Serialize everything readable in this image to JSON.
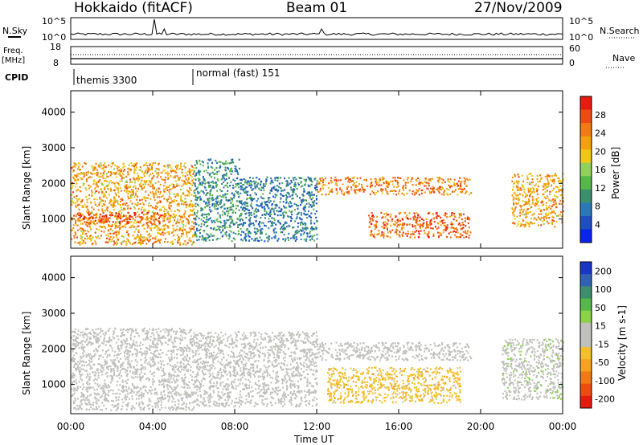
{
  "header": {
    "radar": "Hokkaido (fitACF)",
    "beam": "Beam 01",
    "date": "27/Nov/2009"
  },
  "strips": {
    "nsky_label": "N.Sky",
    "nsky_ticks": [
      "10^5",
      "10^0"
    ],
    "nsearch_label": "N.Search",
    "nsearch_ticks": [
      "10^5",
      "10^0"
    ],
    "freq_label": "Freq.",
    "freq_unit": "[MHz]",
    "freq_ticks": [
      "18",
      "8"
    ],
    "nave_label": "Nave",
    "nave_ticks": [
      "60",
      "0"
    ],
    "cpid_label": "CPID",
    "cpid_segments": [
      {
        "label": "themis 3300",
        "start_hour": 0,
        "end_hour": 6
      },
      {
        "label": "normal (fast) 151",
        "start_hour": 6,
        "end_hour": 24
      }
    ]
  },
  "axes": {
    "ylabel": "Slant Range [km]",
    "xlabel": "Time UT",
    "x_ticks": [
      "00:00",
      "04:00",
      "08:00",
      "12:00",
      "16:00",
      "20:00",
      "00:00"
    ],
    "y_ticks": [
      "1000",
      "2000",
      "3000",
      "4000"
    ]
  },
  "colorbars": {
    "power": {
      "label": "Power [dB]",
      "ticks": [
        "4",
        "8",
        "12",
        "16",
        "20",
        "24",
        "28"
      ],
      "colors": [
        "#0a24f0",
        "#1d4fc0",
        "#2a78b8",
        "#3c8f6c",
        "#56b848",
        "#8fd15a",
        "#f0c814",
        "#f4a00f",
        "#f27a12",
        "#ef4a14",
        "#e81a10"
      ]
    },
    "velocity": {
      "label": "Velocity [m s-1]",
      "ticks": [
        "200",
        "100",
        "50",
        "15",
        "-15",
        "-50",
        "-100",
        "-200"
      ],
      "colors": [
        "#1a36c8",
        "#2f62b4",
        "#3c8e6c",
        "#56b848",
        "#8ad24a",
        "#c0c0bc",
        "#c0c0bc",
        "#f4c02a",
        "#f6a21c",
        "#f07a14",
        "#ee4a12",
        "#e81a0e"
      ]
    }
  },
  "chart_data": [
    {
      "type": "heatmap",
      "title": "Power [dB]",
      "x_range_hours": [
        0,
        24
      ],
      "y_range_km": [
        180,
        4600
      ],
      "colorbar_range": [
        0,
        32
      ],
      "echo_regions": [
        {
          "t0": 0.0,
          "t1": 6.0,
          "r0": 300,
          "r1": 2600,
          "power_db": 22
        },
        {
          "t0": 0.3,
          "t1": 4.5,
          "r0": 900,
          "r1": 1200,
          "power_db": 28
        },
        {
          "t0": 6.0,
          "t1": 8.2,
          "r0": 400,
          "r1": 2700,
          "power_db": 10
        },
        {
          "t0": 8.2,
          "t1": 12.0,
          "r0": 400,
          "r1": 2200,
          "power_db": 8
        },
        {
          "t0": 12.0,
          "t1": 19.5,
          "r0": 1700,
          "r1": 2200,
          "power_db": 24
        },
        {
          "t0": 14.5,
          "t1": 19.5,
          "r0": 500,
          "r1": 1200,
          "power_db": 26
        },
        {
          "t0": 21.5,
          "t1": 24.0,
          "r0": 800,
          "r1": 2300,
          "power_db": 22
        }
      ]
    },
    {
      "type": "heatmap",
      "title": "Velocity [m s-1]",
      "x_range_hours": [
        0,
        24
      ],
      "y_range_km": [
        180,
        4600
      ],
      "colorbar_range": [
        -200,
        200
      ],
      "echo_regions": [
        {
          "t0": 0.0,
          "t1": 6.0,
          "r0": 300,
          "r1": 2600,
          "velocity": 0
        },
        {
          "t0": 6.0,
          "t1": 12.0,
          "r0": 400,
          "r1": 2500,
          "velocity": 0
        },
        {
          "t0": 12.0,
          "t1": 19.5,
          "r0": 1700,
          "r1": 2200,
          "velocity": 0
        },
        {
          "t0": 12.5,
          "t1": 19.0,
          "r0": 500,
          "r1": 1500,
          "velocity": -50
        },
        {
          "t0": 21.0,
          "t1": 24.0,
          "r0": 600,
          "r1": 2300,
          "velocity": 20
        }
      ]
    }
  ]
}
